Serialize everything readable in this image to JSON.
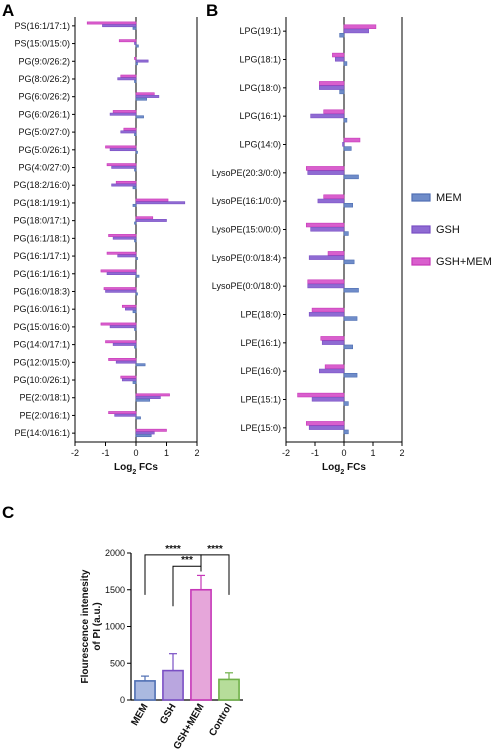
{
  "panels": {
    "a": "A",
    "b": "B",
    "c": "C"
  },
  "legend": [
    {
      "name": "MEM",
      "color": "#4f6fb3"
    },
    {
      "name": "GSH",
      "color": "#7a4fc4"
    },
    {
      "name": "GSH+MEM",
      "color": "#c637b8"
    }
  ],
  "chart_data": [
    {
      "type": "bar",
      "orientation": "horizontal",
      "panel": "A",
      "xlabel_main": "Log",
      "xlabel_sub": "2",
      "xlabel_rest": " FCs",
      "xlim": [
        -2,
        2
      ],
      "xticks": [
        "-2",
        "-1",
        "0",
        "1",
        "2"
      ],
      "series_order": [
        "GSH+MEM",
        "GSH",
        "MEM"
      ],
      "categories": [
        "PS(16:1/17:1)",
        "PS(15:0/15:0)",
        "PG(9:0/26:2)",
        "PG(8:0/26:2)",
        "PG(6:0/26:2)",
        "PG(6:0/26:1)",
        "PG(5:0/27:0)",
        "PG(5:0/26:1)",
        "PG(4:0/27:0)",
        "PG(18:2/16:0)",
        "PG(18:1/19:1)",
        "PG(18:0/17:1)",
        "PG(16:1/18:1)",
        "PG(16:1/17:1)",
        "PG(16:1/16:1)",
        "PG(16:0/18:3)",
        "PG(16:0/16:1)",
        "PG(15:0/16:0)",
        "PG(14:0/17:1)",
        "PG(12:0/15:0)",
        "PG(10:0/26:1)",
        "PE(2:0/18:1)",
        "PE(2:0/16:1)",
        "PE(14:0/16:1)"
      ],
      "series": [
        {
          "name": "GSH+MEM",
          "values": [
            -1.6,
            -0.55,
            -0.05,
            -0.5,
            0.6,
            -0.75,
            -0.4,
            -1.0,
            -0.95,
            -0.65,
            1.05,
            0.55,
            -0.9,
            -0.95,
            -1.15,
            -1.05,
            -0.45,
            -1.15,
            -1.0,
            -0.9,
            -0.5,
            1.1,
            -0.9,
            1.0
          ]
        },
        {
          "name": "GSH",
          "values": [
            -1.1,
            -0.05,
            0.4,
            -0.6,
            0.75,
            -0.85,
            -0.5,
            -0.85,
            -0.8,
            -0.8,
            1.6,
            1.0,
            -0.75,
            -0.6,
            -0.95,
            -1.0,
            -0.35,
            -0.85,
            -0.75,
            -0.65,
            -0.45,
            0.8,
            -0.7,
            0.6
          ]
        },
        {
          "name": "MEM",
          "values": [
            -0.1,
            0.08,
            0.05,
            -0.05,
            0.35,
            0.25,
            -0.05,
            0.05,
            -0.05,
            -0.1,
            -0.1,
            -0.05,
            -0.05,
            0.05,
            0.1,
            0.05,
            -0.1,
            -0.05,
            -0.05,
            0.3,
            -0.1,
            0.45,
            0.15,
            0.5
          ]
        }
      ]
    },
    {
      "type": "bar",
      "orientation": "horizontal",
      "panel": "B",
      "xlabel_main": "Log",
      "xlabel_sub": "2",
      "xlabel_rest": " FCs",
      "xlim": [
        -2,
        2
      ],
      "xticks": [
        "-2",
        "-1",
        "0",
        "1",
        "2"
      ],
      "series_order": [
        "GSH+MEM",
        "GSH",
        "MEM"
      ],
      "categories": [
        "LPG(19:1)",
        "LPG(18:1)",
        "LPG(18:0)",
        "LPG(16:1)",
        "LPG(14:0)",
        "LysoPE(20:3/0:0)",
        "LysoPE(16:1/0:0)",
        "LysoPE(15:0/0:0)",
        "LysoPE(0:0/18:4)",
        "LysoPE(0:0/18:0)",
        "LPE(18:0)",
        "LPE(16:1)",
        "LPE(16:0)",
        "LPE(15:1)",
        "LPE(15:0)"
      ],
      "series": [
        {
          "name": "GSH+MEM",
          "values": [
            1.1,
            -0.4,
            -0.85,
            -0.7,
            0.55,
            -1.3,
            -0.7,
            -1.3,
            -0.55,
            -1.25,
            -1.1,
            -0.8,
            -0.65,
            -1.6,
            -1.3
          ]
        },
        {
          "name": "GSH",
          "values": [
            0.85,
            -0.3,
            -0.85,
            -1.15,
            -0.05,
            -1.25,
            -0.9,
            -1.15,
            -1.2,
            -1.25,
            -1.2,
            -0.75,
            -0.85,
            -1.1,
            -1.2
          ]
        },
        {
          "name": "MEM",
          "values": [
            -0.15,
            0.1,
            -0.15,
            0.1,
            0.25,
            0.5,
            0.3,
            0.15,
            0.35,
            0.5,
            0.45,
            0.3,
            0.45,
            0.15,
            0.15
          ]
        }
      ]
    },
    {
      "type": "bar",
      "orientation": "vertical",
      "panel": "C",
      "ylabel_line1": "Flourescence intenesity",
      "ylabel_line2": "of PI (a.u.)",
      "ylim": [
        0,
        2000
      ],
      "yticks": [
        "0",
        "500",
        "1000",
        "1500",
        "2000"
      ],
      "categories": [
        "MEM",
        "GSH",
        "GSH+MEM",
        "Control"
      ],
      "values": [
        260,
        400,
        1500,
        280
      ],
      "errors": [
        65,
        230,
        195,
        90
      ],
      "colors": [
        "#4f6fb3",
        "#7a4fc4",
        "#c637b8",
        "#6fb048"
      ],
      "fills": [
        "#aab9e0",
        "#b9a6df",
        "#e6a6da",
        "#b6dd9a"
      ],
      "significance": [
        {
          "from": 0,
          "to": 2,
          "label": "****",
          "y": 1975
        },
        {
          "from": 2,
          "to": 3,
          "label": "****",
          "y": 1975
        },
        {
          "from": 1,
          "to": 2,
          "label": "***",
          "y": 1820
        }
      ]
    }
  ]
}
